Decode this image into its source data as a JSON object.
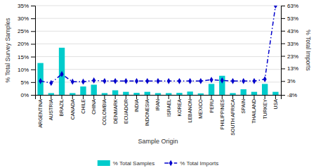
{
  "chart_data": {
    "type": "bar",
    "xlabel": "Sample Origin",
    "ylabel": "% Total Survey Samples",
    "y2label": "% Total Imports",
    "categories": [
      "ARGENTINA",
      "AUSTRIA",
      "BRAZIL",
      "CANADA",
      "CHILE",
      "CHINA",
      "COLOMBIA",
      "DENMARK",
      "ECUADOR",
      "INDIA",
      "INDONESIA",
      "IRAN",
      "ISRAEL",
      "KOREA",
      "LEBANON",
      "MEXICO",
      "PERU",
      "PHILIPPINES",
      "SOUTH AFRICA",
      "SPAIN",
      "THAILAND",
      "TURKEY",
      "USA"
    ],
    "series": [
      {
        "name": "% Total Samples",
        "type": "bar",
        "color": "#00CCCC",
        "values": [
          12.5,
          0.7,
          18.5,
          0.7,
          3.3,
          4.0,
          0.7,
          1.8,
          1.2,
          0.8,
          1.2,
          0.7,
          0.7,
          0.8,
          1.3,
          0.6,
          4.3,
          7.5,
          0.7,
          2.2,
          1.2,
          4.3,
          1.2
        ]
      },
      {
        "name": "% Total Imports",
        "type": "line",
        "axis": "y2",
        "color": "#0000CC",
        "marker": "diamond",
        "line_style": "dashdot",
        "values": [
          3.0,
          1.5,
          8.5,
          2.5,
          2.5,
          3.5,
          3.0,
          3.0,
          3.0,
          3.0,
          3.0,
          3.0,
          3.0,
          3.0,
          3.0,
          3.0,
          4.0,
          3.5,
          3.0,
          3.0,
          3.0,
          4.5,
          63.0
        ]
      }
    ],
    "ylim": [
      0,
      35
    ],
    "yticks": [
      {
        "value": 0,
        "label": "0%"
      },
      {
        "value": 5,
        "label": "5%"
      },
      {
        "value": 10,
        "label": "10%"
      },
      {
        "value": 15,
        "label": "15%"
      },
      {
        "value": 20,
        "label": "20%"
      },
      {
        "value": 25,
        "label": "25%"
      },
      {
        "value": 30,
        "label": "30%"
      },
      {
        "value": 35,
        "label": "35%"
      }
    ],
    "y2lim": [
      -8,
      63
    ],
    "y2ticks": [
      {
        "value": -8,
        "label": "-8%"
      },
      {
        "value": 3,
        "label": "3%"
      },
      {
        "value": 13,
        "label": "13%"
      },
      {
        "value": 23,
        "label": "23%"
      },
      {
        "value": 33,
        "label": "33%"
      },
      {
        "value": 43,
        "label": "43%"
      },
      {
        "value": 53,
        "label": "53%"
      },
      {
        "value": 63,
        "label": "63%"
      }
    ],
    "grid": true,
    "legend": "bottom"
  }
}
